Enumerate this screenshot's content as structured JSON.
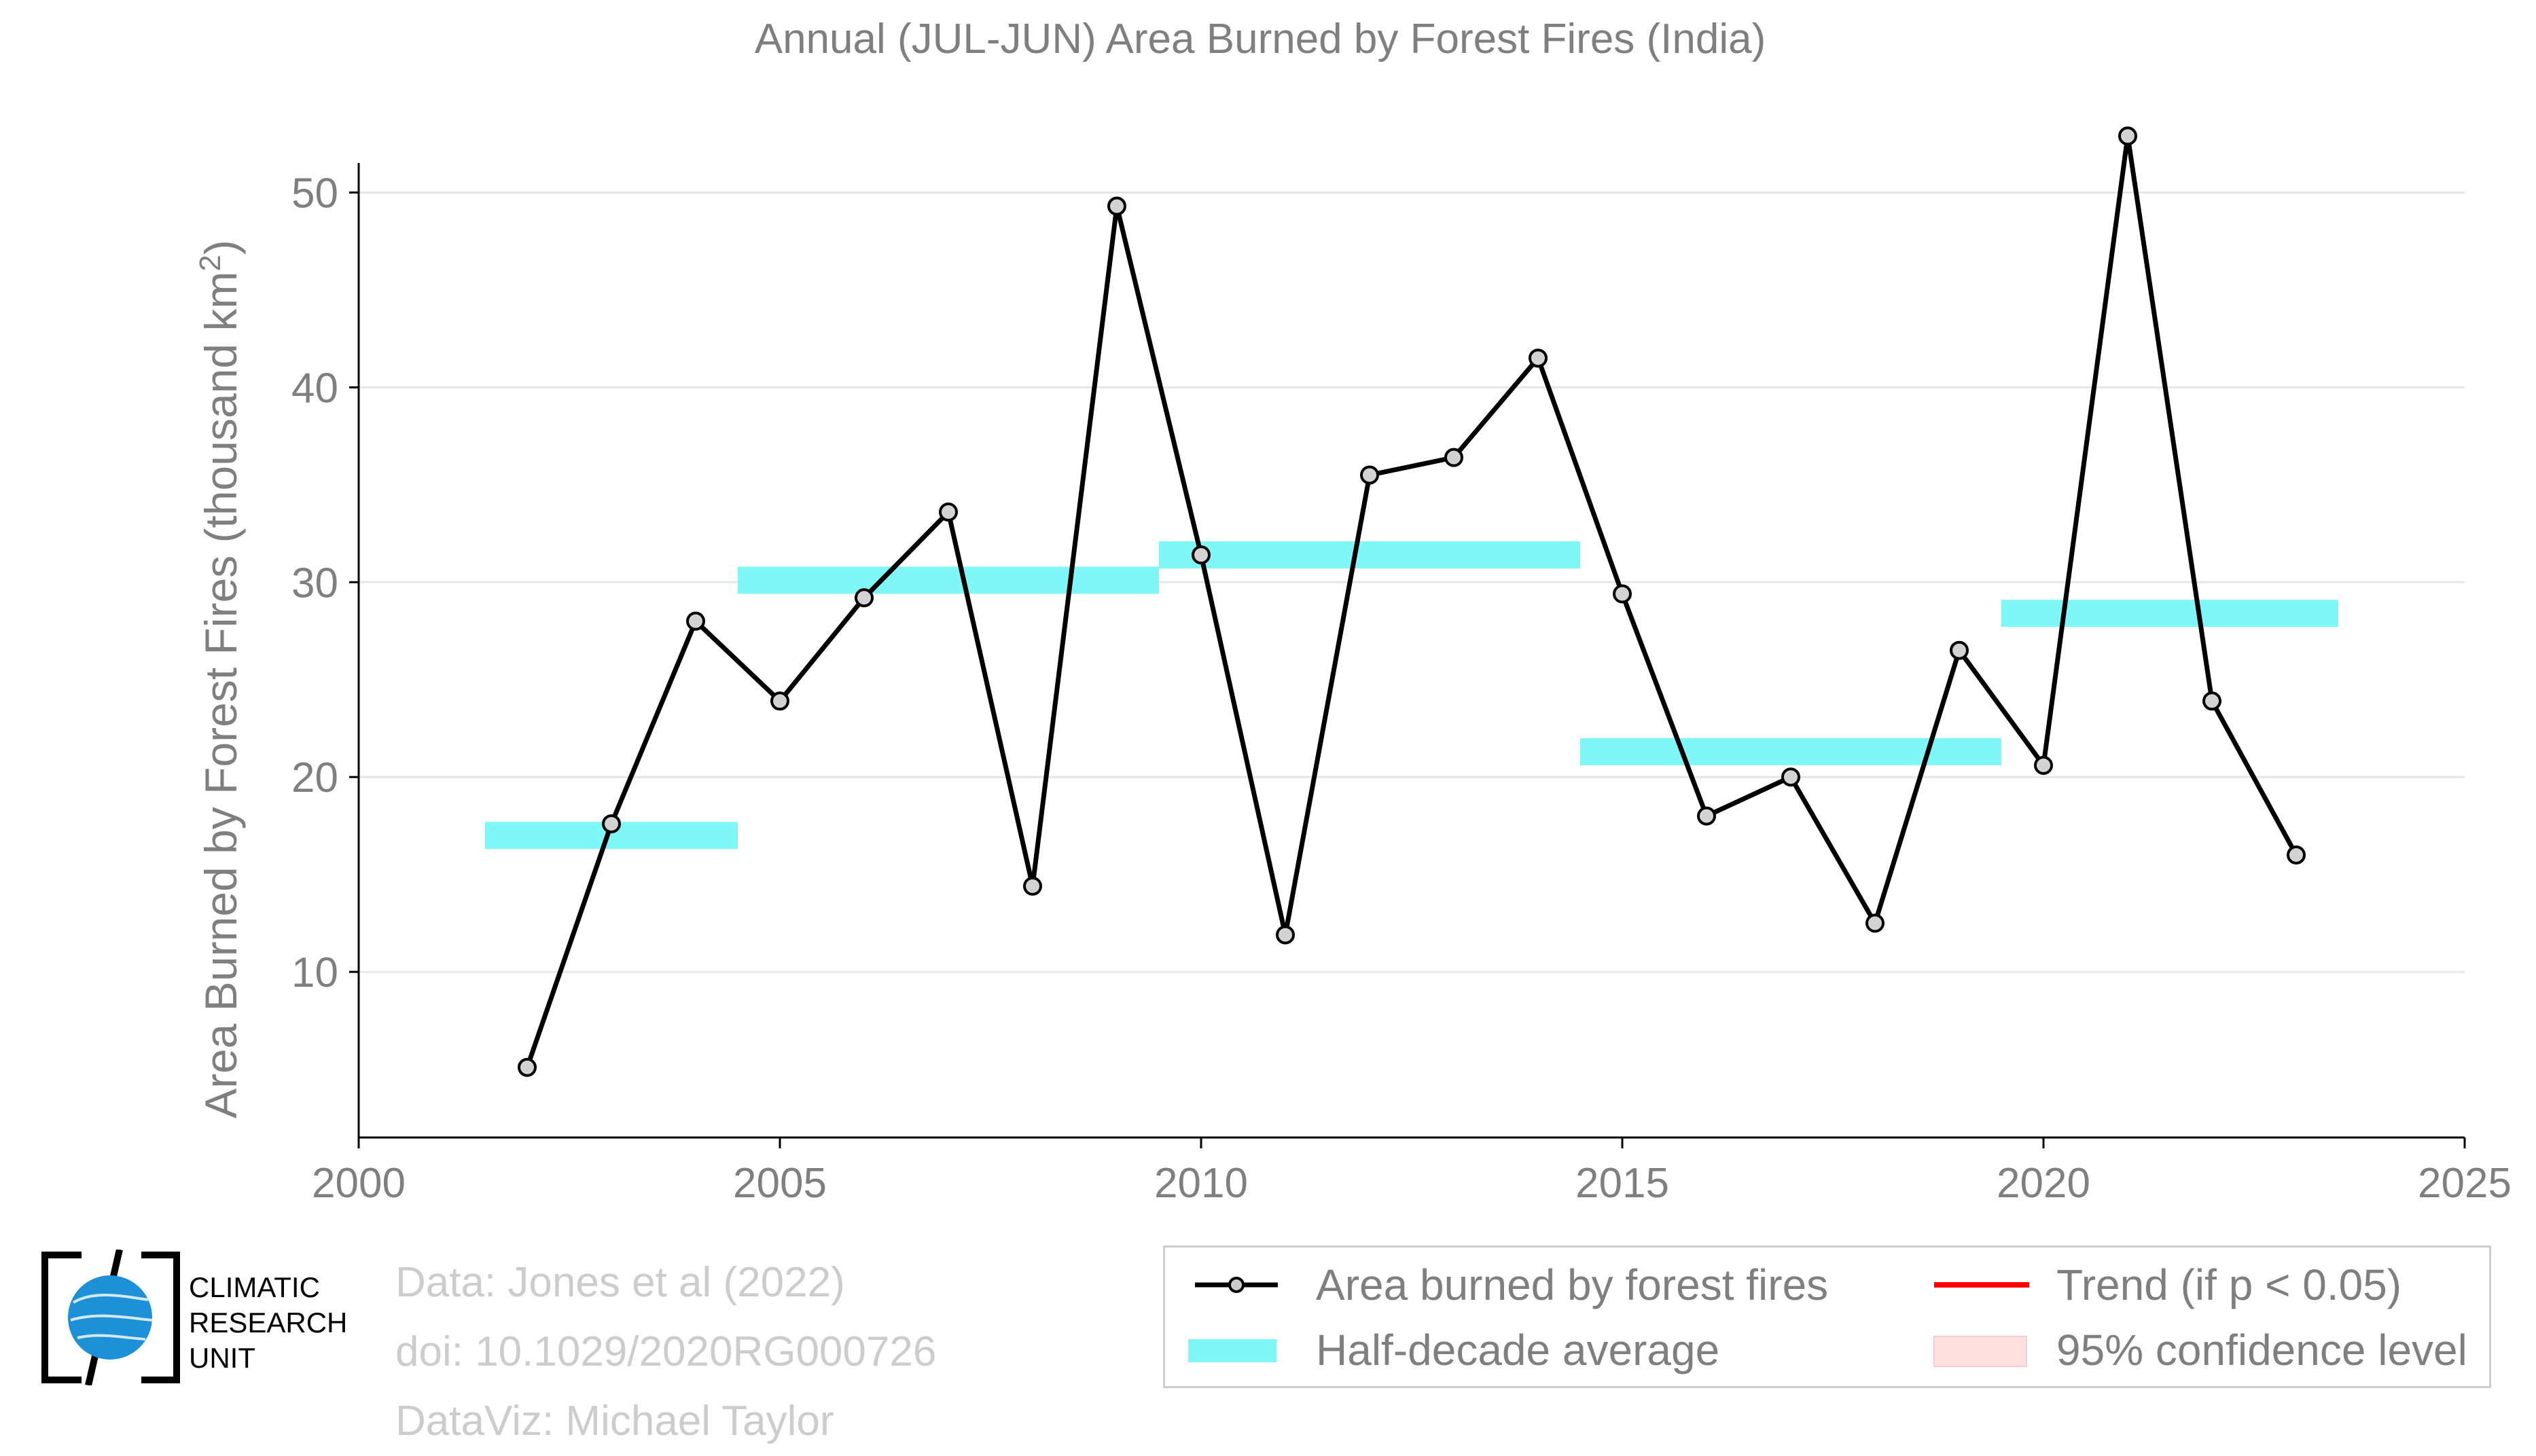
{
  "chart_data": {
    "type": "line",
    "title": "Annual (JUL-JUN) Area Burned by Forest Fires (India)",
    "ylabel_main": "Area Burned by Forest Fires (thousand km",
    "ylabel_sup": "2",
    "ylabel_end": ")",
    "xlim": [
      2000,
      2025
    ],
    "ylim": [
      1.5,
      55
    ],
    "xticks": [
      2000,
      2005,
      2010,
      2015,
      2020,
      2025
    ],
    "yticks": [
      10,
      20,
      30,
      40,
      50
    ],
    "grid": true,
    "series": [
      {
        "name": "Area burned by forest fires",
        "color": "#000000",
        "x": [
          2002,
          2003,
          2004,
          2005,
          2006,
          2007,
          2008,
          2009,
          2010,
          2011,
          2012,
          2013,
          2014,
          2015,
          2016,
          2017,
          2018,
          2019,
          2020,
          2021,
          2022,
          2023
        ],
        "y": [
          5.1,
          17.6,
          28.0,
          23.9,
          29.2,
          33.6,
          14.4,
          49.3,
          31.4,
          11.9,
          35.5,
          36.4,
          41.5,
          29.4,
          18.0,
          20.0,
          12.5,
          26.5,
          20.6,
          52.9,
          23.9,
          16.0
        ]
      }
    ],
    "half_decade_average": {
      "name": "Half-decade average",
      "color": "#7ff7f7",
      "segments": [
        {
          "x0": 2001.5,
          "x1": 2004.5,
          "y": 17.0
        },
        {
          "x0": 2004.5,
          "x1": 2009.5,
          "y": 30.1
        },
        {
          "x0": 2009.5,
          "x1": 2014.5,
          "y": 31.4
        },
        {
          "x0": 2014.5,
          "x1": 2019.5,
          "y": 21.3
        },
        {
          "x0": 2019.5,
          "x1": 2023.5,
          "y": 28.4
        }
      ]
    },
    "legend": {
      "placement": "bottom-right",
      "items": [
        {
          "label": "Area burned by forest fires",
          "kind": "line-marker",
          "color": "#000000"
        },
        {
          "label": "Trend (if p < 0.05)",
          "kind": "line",
          "color": "#ff0000"
        },
        {
          "label": "Half-decade average",
          "kind": "band",
          "color": "#7ff7f7"
        },
        {
          "label": "95% confidence level",
          "kind": "patch",
          "color": "#ffe0e0"
        }
      ]
    }
  },
  "credits": {
    "line1": "Data: Jones et al (2022)",
    "line2": "doi: 10.1029/2020RG000726",
    "line3": "DataViz: Michael Taylor"
  },
  "logo": {
    "line1": "CLIMATIC",
    "line2": "RESEARCH",
    "line3": "UNIT",
    "globe_color": "#1e90d8"
  }
}
